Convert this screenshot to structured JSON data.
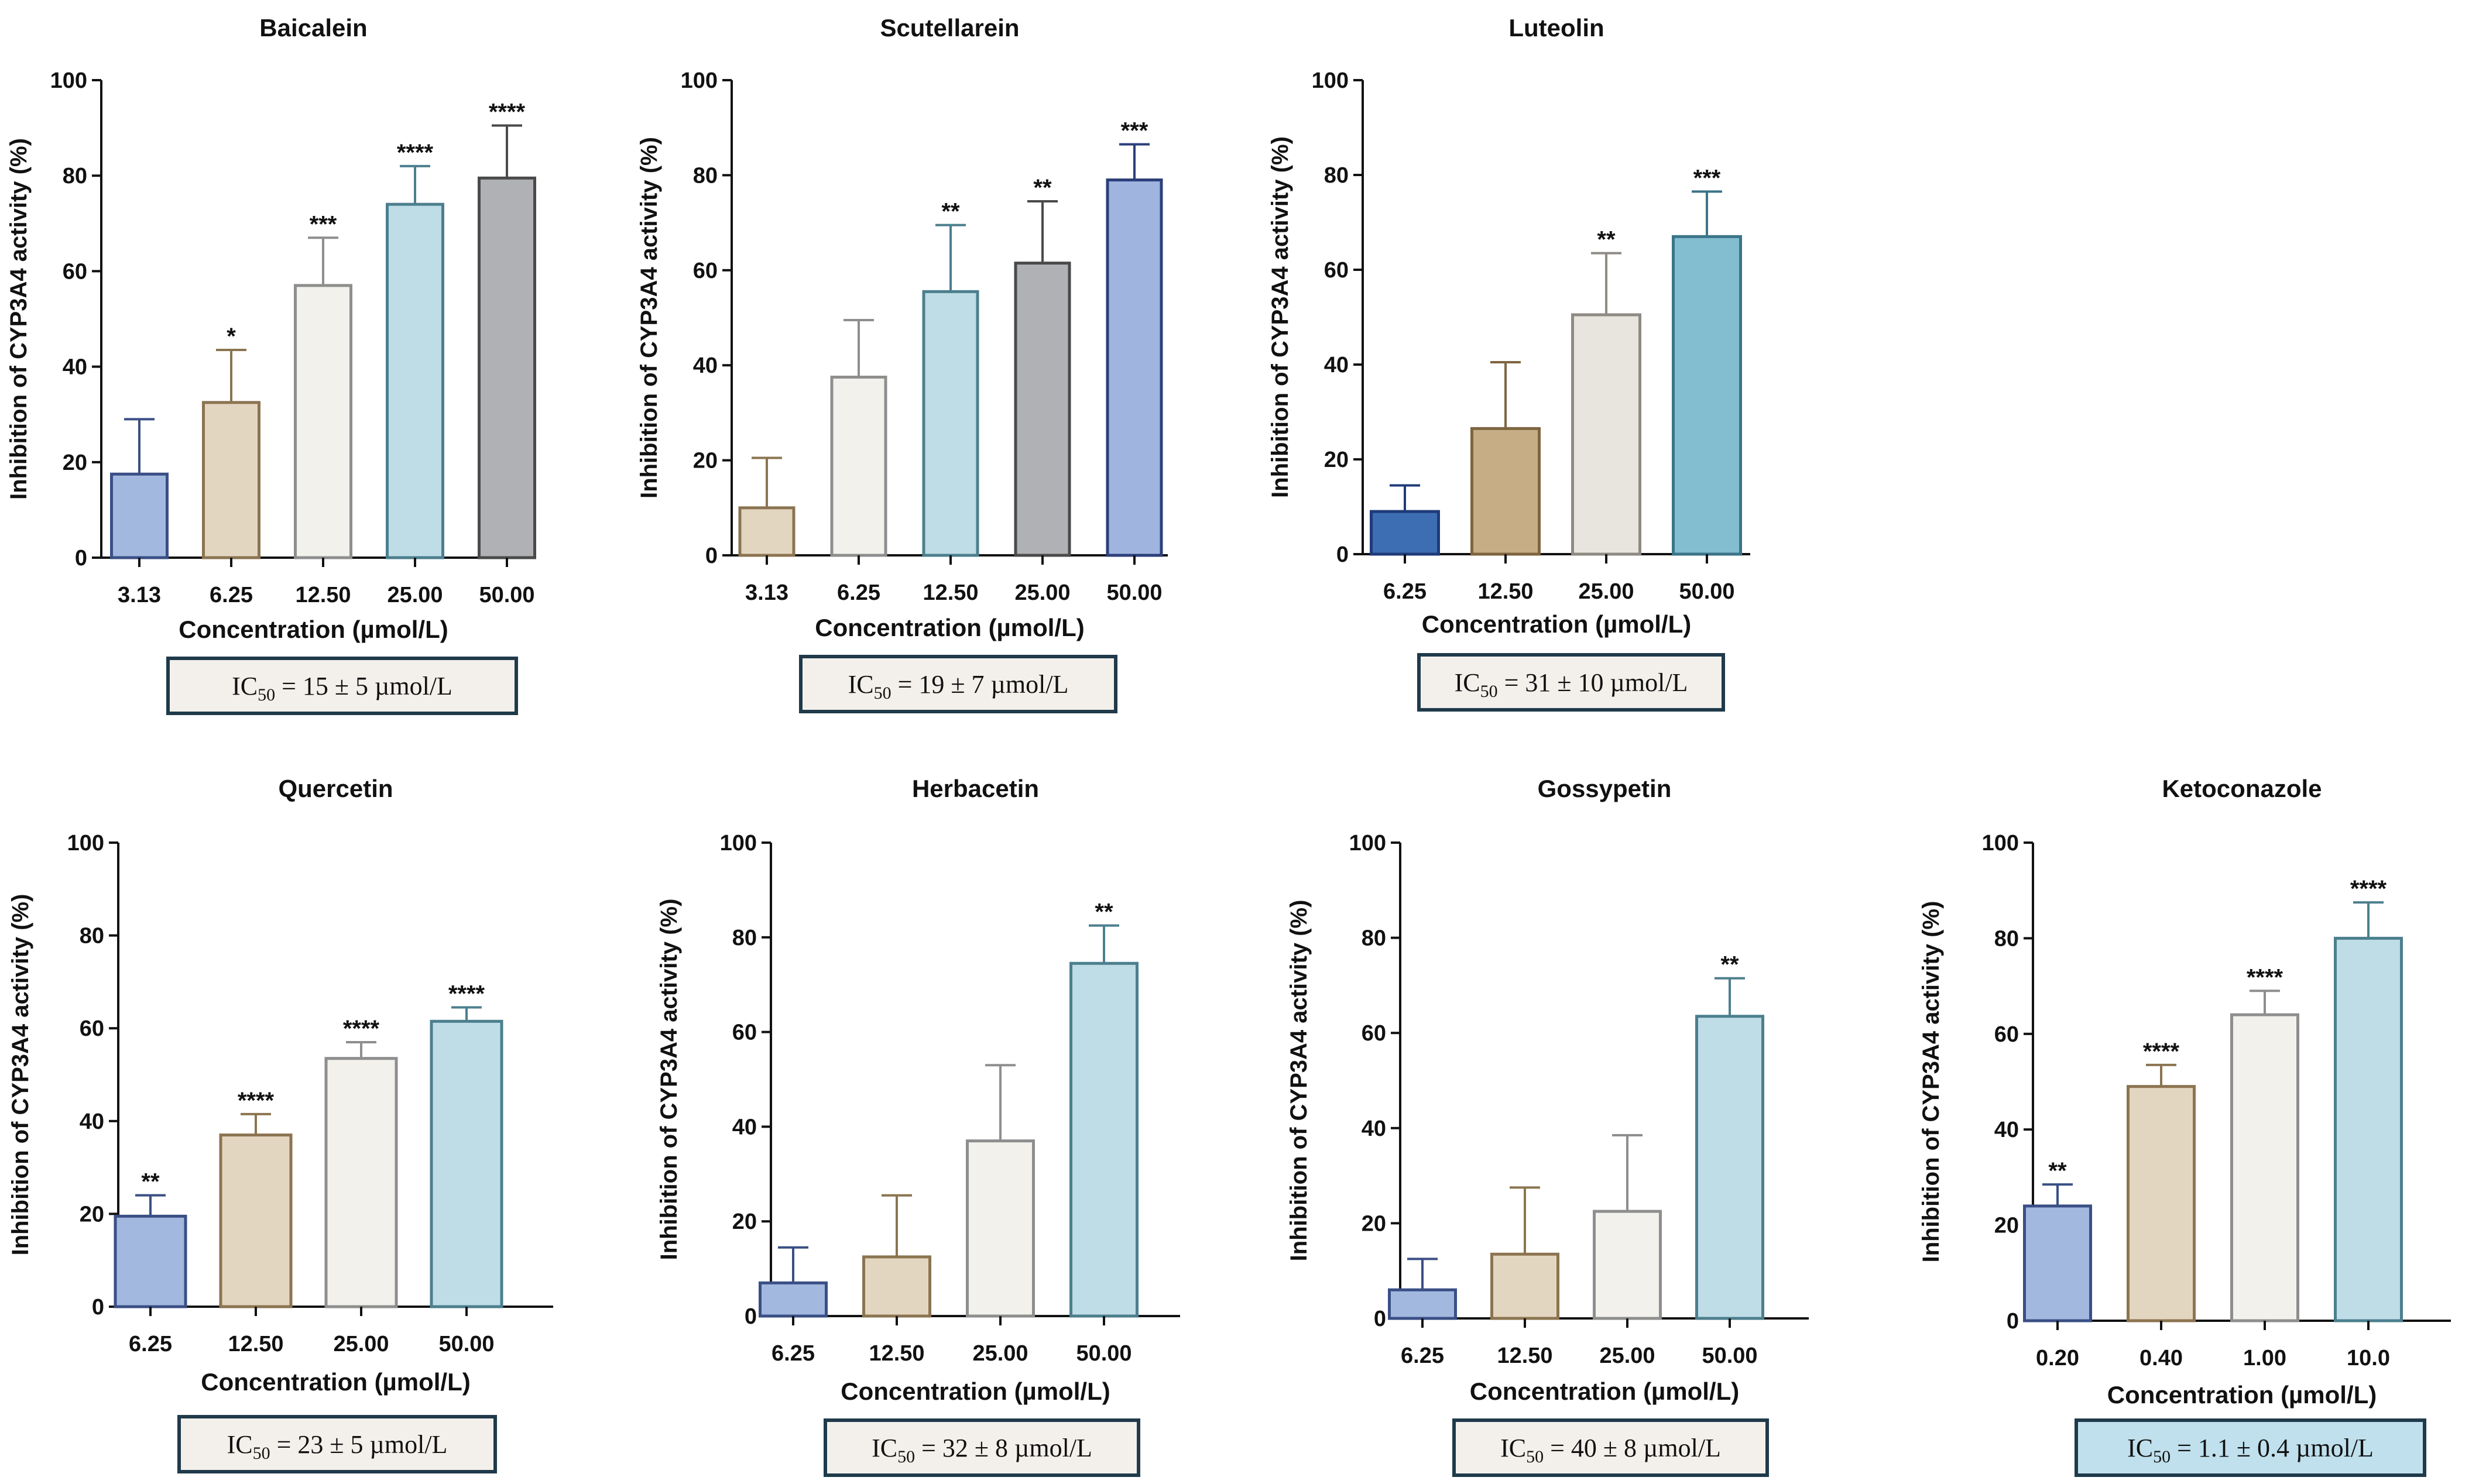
{
  "figure": {
    "ylabel": "Inhibition of CYP3A4 activity (%)",
    "xlabel": "Concentration (µmol/L)",
    "ic_prefix": "IC",
    "ic_subscript": "50"
  },
  "chart_data": [
    {
      "type": "bar",
      "title": "Baicalein",
      "categories": [
        "3.13",
        "6.25",
        "12.50",
        "25.00",
        "50.00"
      ],
      "values": [
        17.5,
        32.5,
        57,
        74,
        79.5
      ],
      "errors": [
        11.5,
        11,
        10,
        8,
        11
      ],
      "significance": [
        "",
        "*",
        "***",
        "****",
        "****"
      ],
      "colors": [
        "#a3b8df",
        "#e3d6c1",
        "#f2f1ec",
        "#bfdde6",
        "#b0b1b4"
      ],
      "edges": [
        "#3a4f85",
        "#8b7450",
        "#8e8e8e",
        "#4c7f8e",
        "#4a4a4a"
      ],
      "ylim": [
        0,
        100
      ],
      "yticks": [
        "0",
        "20",
        "40",
        "60",
        "80",
        "100"
      ],
      "ic50": " = 15 ± 5 µmol/L",
      "ic_fill": "#f3f0eb"
    },
    {
      "type": "bar",
      "title": "Scutellarein",
      "categories": [
        "3.13",
        "6.25",
        "12.50",
        "25.00",
        "50.00"
      ],
      "values": [
        10,
        37.5,
        55.5,
        61.5,
        79
      ],
      "errors": [
        10.5,
        12,
        14,
        13,
        7.5
      ],
      "significance": [
        "",
        "",
        "**",
        "**",
        "***"
      ],
      "colors": [
        "#e3d6c1",
        "#f2f1ec",
        "#bfdde6",
        "#b0b1b4",
        "#9fb4df"
      ],
      "edges": [
        "#8b7450",
        "#8e8e8e",
        "#4c7f8e",
        "#4a4a4a",
        "#2c3f7a"
      ],
      "ylim": [
        0,
        100
      ],
      "yticks": [
        "0",
        "20",
        "40",
        "60",
        "80",
        "100"
      ],
      "ic50": " = 19 ± 7 µmol/L",
      "ic_fill": "#f3f0eb"
    },
    {
      "type": "bar",
      "title": "Luteolin",
      "categories": [
        "6.25",
        "12.50",
        "25.00",
        "50.00"
      ],
      "values": [
        9,
        26.5,
        50.5,
        67
      ],
      "errors": [
        5.5,
        14,
        13,
        9.5
      ],
      "significance": [
        "",
        "",
        "**",
        "***"
      ],
      "colors": [
        "#3d6db3",
        "#c6ad86",
        "#e8e4de",
        "#83bdd0"
      ],
      "edges": [
        "#1f3b78",
        "#7e6540",
        "#8e8a84",
        "#3b7488"
      ],
      "ylim": [
        0,
        100
      ],
      "yticks": [
        "0",
        "20",
        "40",
        "60",
        "80",
        "100"
      ],
      "ic50": " = 31 ± 10 µmol/L",
      "ic_fill": "#f3f0eb"
    },
    {
      "type": "bar",
      "title": "Quercetin",
      "categories": [
        "6.25",
        "12.50",
        "25.00",
        "50.00"
      ],
      "values": [
        19.5,
        37,
        53.5,
        61.5
      ],
      "errors": [
        4.5,
        4.5,
        3.5,
        3
      ],
      "significance": [
        "**",
        "****",
        "****",
        "****"
      ],
      "colors": [
        "#a3b8df",
        "#e3d6c1",
        "#f2f1ec",
        "#bfdde6"
      ],
      "edges": [
        "#3a4f85",
        "#8b7450",
        "#8e8e8e",
        "#4c7f8e"
      ],
      "ylim": [
        0,
        100
      ],
      "yticks": [
        "0",
        "20",
        "40",
        "60",
        "80",
        "100"
      ],
      "ic50": " = 23 ± 5 µmol/L",
      "ic_fill": "#f3f0eb"
    },
    {
      "type": "bar",
      "title": "Herbacetin",
      "categories": [
        "6.25",
        "12.50",
        "25.00",
        "50.00"
      ],
      "values": [
        7,
        12.5,
        37,
        74.5
      ],
      "errors": [
        7.5,
        13,
        16,
        8
      ],
      "significance": [
        "",
        "",
        "",
        "**"
      ],
      "colors": [
        "#a3b8df",
        "#e3d6c1",
        "#f2f1ec",
        "#bfdde6"
      ],
      "edges": [
        "#3a4f85",
        "#8b7450",
        "#8e8e8e",
        "#4c7f8e"
      ],
      "ylim": [
        0,
        100
      ],
      "yticks": [
        "0",
        "20",
        "40",
        "60",
        "80",
        "100"
      ],
      "ic50": " = 32 ± 8 µmol/L",
      "ic_fill": "#f3f0eb"
    },
    {
      "type": "bar",
      "title": "Gossypetin",
      "categories": [
        "6.25",
        "12.50",
        "25.00",
        "50.00"
      ],
      "values": [
        6,
        13.5,
        22.5,
        63.5
      ],
      "errors": [
        6.5,
        14,
        16,
        8
      ],
      "significance": [
        "",
        "",
        "",
        "**"
      ],
      "colors": [
        "#a3b8df",
        "#e3d6c1",
        "#f2f1ec",
        "#bfdde6"
      ],
      "edges": [
        "#3a4f85",
        "#8b7450",
        "#8e8e8e",
        "#4c7f8e"
      ],
      "ylim": [
        0,
        100
      ],
      "yticks": [
        "0",
        "20",
        "40",
        "60",
        "80",
        "100"
      ],
      "ic50": " = 40 ± 8 µmol/L",
      "ic_fill": "#f3f0eb"
    },
    {
      "type": "bar",
      "title": "Ketoconazole",
      "categories": [
        "0.20",
        "0.40",
        "1.00",
        "10.0"
      ],
      "values": [
        24,
        49,
        64,
        80
      ],
      "errors": [
        4.5,
        4.5,
        5,
        7.5
      ],
      "significance": [
        "**",
        "****",
        "****",
        "****"
      ],
      "colors": [
        "#a3b8df",
        "#e3d6c1",
        "#f2f1ec",
        "#bfdde6"
      ],
      "edges": [
        "#3a4f85",
        "#8b7450",
        "#8e8e8e",
        "#4c7f8e"
      ],
      "ylim": [
        0,
        100
      ],
      "yticks": [
        "0",
        "20",
        "40",
        "60",
        "80",
        "100"
      ],
      "ic50": " = 1.1 ± 0.4 µmol/L",
      "ic_fill": "#bfe0ec"
    }
  ]
}
